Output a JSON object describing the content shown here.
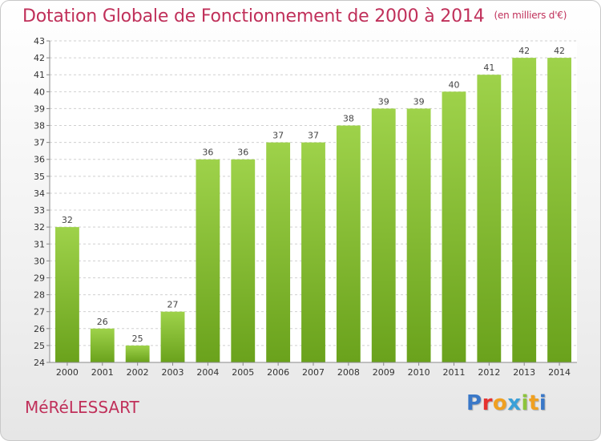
{
  "title": "Dotation Globale de Fonctionnement de 2000 à 2014",
  "subtitle": "(en milliers d'€)",
  "commune": "MéRéLESSART",
  "logo": {
    "letters": [
      "P",
      "r",
      "o",
      "x",
      "i",
      "t",
      "i"
    ],
    "colors": [
      "#3a78c8",
      "#e6322e",
      "#f0a020",
      "#3aa0d8",
      "#8cc43c",
      "#f0a020",
      "#3a78c8"
    ]
  },
  "colors": {
    "bar_top": "#9ed24a",
    "bar_bottom": "#6aa21c",
    "title": "#c0305a"
  },
  "chart_data": {
    "type": "bar",
    "categories": [
      "2000",
      "2001",
      "2002",
      "2003",
      "2004",
      "2005",
      "2006",
      "2007",
      "2008",
      "2009",
      "2010",
      "2011",
      "2012",
      "2013",
      "2014"
    ],
    "values": [
      32,
      26,
      25,
      27,
      36,
      36,
      37,
      37,
      38,
      39,
      39,
      40,
      41,
      42,
      42
    ],
    "ylim": [
      24,
      43
    ],
    "yticks": [
      24,
      25,
      26,
      27,
      28,
      29,
      30,
      31,
      32,
      33,
      34,
      35,
      36,
      37,
      38,
      39,
      40,
      41,
      42,
      43
    ],
    "grid": true,
    "legend": "none"
  }
}
